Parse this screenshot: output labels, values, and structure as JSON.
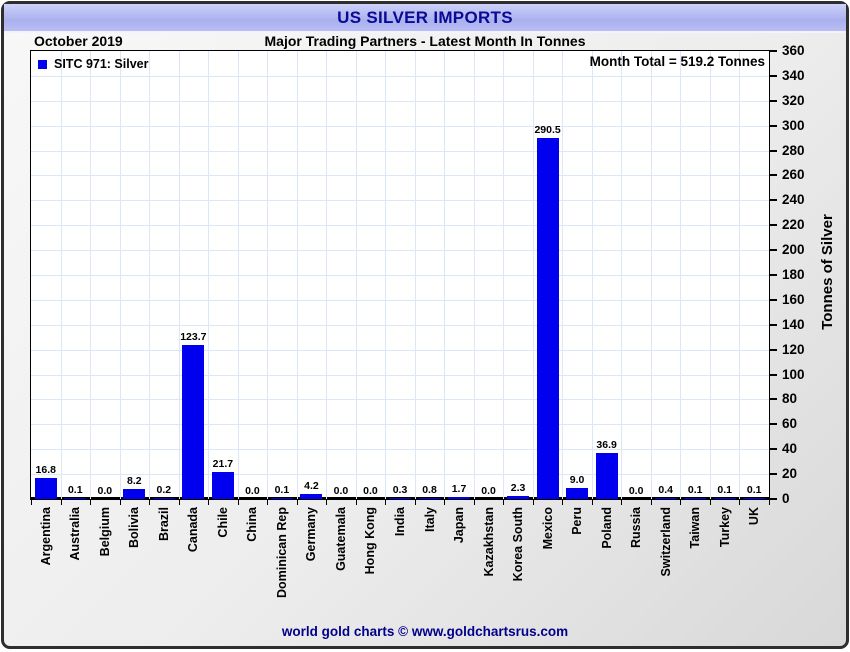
{
  "header": {
    "title": "US SILVER IMPORTS",
    "date_label": "October 2019",
    "subtitle": "Major Trading Partners - Latest Month In Tonnes"
  },
  "legend": {
    "label": "SITC 971: Silver"
  },
  "annotations": {
    "month_total": "Month Total = 519.2 Tonnes"
  },
  "footer": {
    "credit": "world gold charts © www.goldchartsrus.com"
  },
  "colors": {
    "bar": "#0000ee",
    "title_navy": "#0a0a96",
    "footer_navy": "#00008b",
    "gridline": "#dbe7f6",
    "header_band": "#aab0ee"
  },
  "chart_data": {
    "type": "bar",
    "title": "US SILVER IMPORTS",
    "subtitle": "Major Trading Partners - Latest Month In Tonnes",
    "period": "October 2019",
    "month_total_tonnes": 519.2,
    "categories": [
      "Argentina",
      "Australia",
      "Belgium",
      "Bolivia",
      "Brazil",
      "Canada",
      "Chile",
      "China",
      "Dominican Rep",
      "Germany",
      "Guatemala",
      "Hong Kong",
      "India",
      "Italy",
      "Japan",
      "Kazakhstan",
      "Korea South",
      "Mexico",
      "Peru",
      "Poland",
      "Russia",
      "Switzerland",
      "Taiwan",
      "Turkey",
      "UK"
    ],
    "values": [
      16.8,
      0.1,
      0.0,
      8.2,
      0.2,
      123.7,
      21.7,
      0.0,
      0.1,
      4.2,
      0.0,
      0.0,
      0.3,
      0.8,
      1.7,
      0.0,
      2.3,
      290.5,
      9.0,
      36.9,
      0.0,
      0.4,
      0.1,
      0.1,
      0.1
    ],
    "xlabel": "",
    "ylabel": "Tonnes of Silver",
    "ylim": [
      0,
      360
    ],
    "ytick_step": 20,
    "yaxis_side": "right",
    "grid": true,
    "legend_position": "top-left",
    "value_labels": true,
    "series_name": "SITC 971: Silver"
  }
}
